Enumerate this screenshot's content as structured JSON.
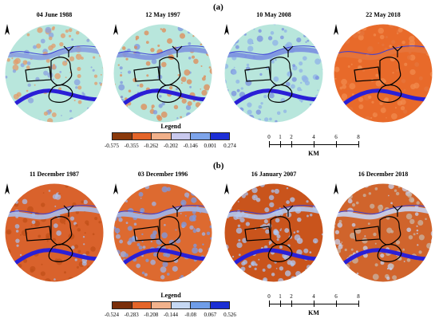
{
  "panels": {
    "a_label": "(a)",
    "b_label": "(b)"
  },
  "maps_a": [
    {
      "date": "04 June 1988",
      "base": "#b8e6dc",
      "alt": "#e39b6a",
      "river": "#8aa0e0"
    },
    {
      "date": "12 May 1997",
      "base": "#b8e6dc",
      "alt": "#e08a55",
      "river": "#7f95df"
    },
    {
      "date": "10 May 2008",
      "base": "#b8e6dc",
      "alt": "#8fb2e8",
      "river": "#7a8fe0"
    },
    {
      "date": "22 May 2018",
      "base": "#e86a2a",
      "alt": "#f28b4e",
      "river": "#e5763c"
    }
  ],
  "maps_b": [
    {
      "date": "11 December 1987",
      "base": "#d9622c",
      "alt": "#c05018",
      "river": "#a9bde8"
    },
    {
      "date": "03 December 1996",
      "base": "#dd6a30",
      "alt": "#7a9be6",
      "river": "#9eb6ea"
    },
    {
      "date": "16 January 2007",
      "base": "#c9541c",
      "alt": "#a9c1ee",
      "river": "#b3c8ef"
    },
    {
      "date": "16 December 2018",
      "base": "#d0642c",
      "alt": "#c9b4a4",
      "river": "#c6d1ef"
    }
  ],
  "legend_a": {
    "title": "Legend",
    "ticks": [
      "-0.575",
      "-0.355",
      "-0.262",
      "-0.202",
      "-0.146",
      "0.001",
      "0.274"
    ],
    "colors": [
      "#8b3a0c",
      "#e4652a",
      "#f0b08a",
      "#c9c9ee",
      "#7da4ea",
      "#1d2fd6"
    ]
  },
  "legend_b": {
    "title": "Legend",
    "ticks": [
      "-0.524",
      "-0.283",
      "-0.208",
      "-0.144",
      "-0.08",
      "0.067",
      "0.526"
    ],
    "colors": [
      "#7a2e0a",
      "#e4652a",
      "#f2b28c",
      "#c6d8f3",
      "#6f9de8",
      "#1b2fd4"
    ]
  },
  "scale_a": {
    "labels": [
      "0",
      "1",
      "2",
      "4",
      "6",
      "8"
    ],
    "unit": "KM"
  },
  "scale_b": {
    "labels": [
      "0",
      "1",
      "2",
      "4",
      "6",
      "8"
    ],
    "unit": "KM"
  },
  "north_label": "N"
}
